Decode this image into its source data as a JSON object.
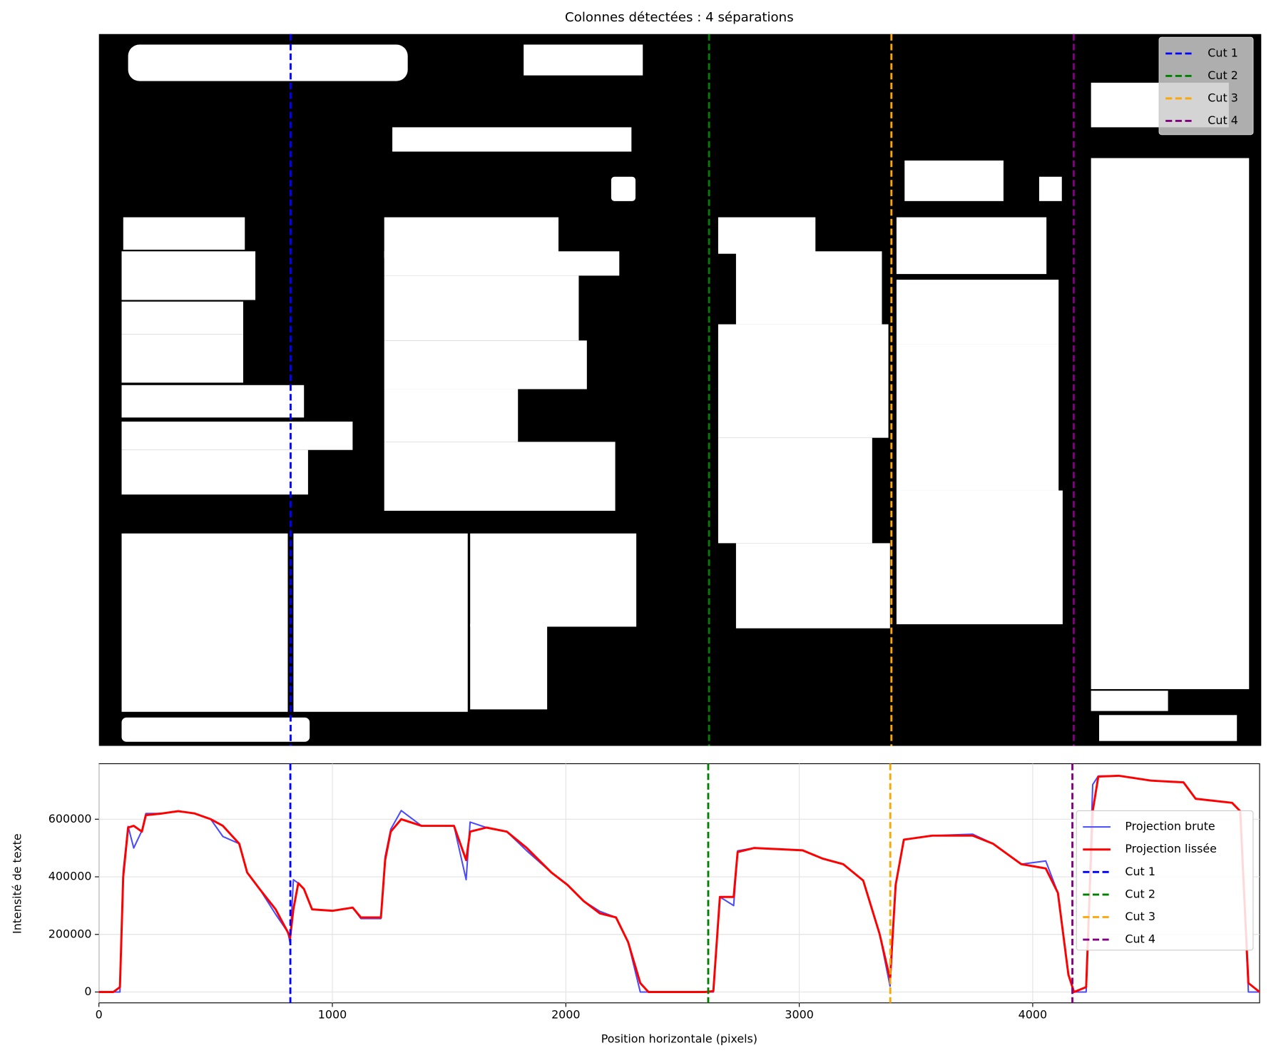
{
  "chart_data": [
    {
      "type": "image",
      "title": "Colonnes détectées : 4 séparations",
      "xlim": [
        0,
        4972
      ],
      "legend": "upper right",
      "series": [
        {
          "name": "Cut 1",
          "color": "#0000ff",
          "value": 820
        },
        {
          "name": "Cut 2",
          "color": "#008000",
          "value": 2610
        },
        {
          "name": "Cut 3",
          "color": "#ffa500",
          "value": 3390
        },
        {
          "name": "Cut 4",
          "color": "#800080",
          "value": 4170
        }
      ]
    },
    {
      "type": "line",
      "xlabel": "Position horizontale (pixels)",
      "ylabel": "Intensité de texte",
      "xlim": [
        0,
        4972
      ],
      "ylim": [
        -37750,
        792750
      ],
      "xticks": [
        0,
        1000,
        2000,
        3000,
        4000
      ],
      "yticks": [
        0,
        200000,
        400000,
        600000
      ],
      "grid": true,
      "legend": "center right",
      "x": [
        0,
        62,
        90,
        104,
        125,
        149,
        184,
        201,
        271,
        340,
        410,
        479,
        531,
        601,
        635,
        688,
        757,
        809,
        819,
        833,
        854,
        878,
        913,
        1000,
        1087,
        1122,
        1208,
        1226,
        1250,
        1295,
        1382,
        1521,
        1573,
        1590,
        1660,
        1747,
        1833,
        1938,
        2007,
        2076,
        2146,
        2215,
        2267,
        2319,
        2354,
        2597,
        2632,
        2660,
        2719,
        2736,
        2806,
        3014,
        3101,
        3188,
        3274,
        3344,
        3389,
        3413,
        3448,
        3569,
        3743,
        3830,
        3951,
        4056,
        4108,
        4153,
        4177,
        4229,
        4257,
        4281,
        4368,
        4507,
        4646,
        4698,
        4854,
        4889,
        4924,
        4972
      ],
      "series": [
        {
          "name": "Projection brute",
          "color": "#4a4aff",
          "values": [
            0,
            0,
            0,
            420000,
            575000,
            500000,
            560000,
            620000,
            620000,
            628000,
            620000,
            600000,
            540000,
            515000,
            415000,
            358000,
            270000,
            208000,
            170000,
            390000,
            378000,
            358000,
            287000,
            282000,
            293000,
            255000,
            255000,
            470000,
            565000,
            630000,
            577000,
            577000,
            390000,
            590000,
            571000,
            557000,
            490000,
            415000,
            372000,
            316000,
            280000,
            259000,
            173000,
            0,
            0,
            0,
            0,
            330000,
            300000,
            490000,
            500000,
            492000,
            463000,
            444000,
            387000,
            202000,
            20000,
            372000,
            529000,
            543000,
            548000,
            515000,
            444000,
            455000,
            344000,
            60000,
            0,
            0,
            720000,
            750000,
            751000,
            734000,
            728000,
            671000,
            657000,
            628000,
            0,
            0
          ]
        },
        {
          "name": "Projection lissée",
          "color": "#ff0000",
          "values": [
            0,
            0,
            17000,
            400000,
            571000,
            577000,
            557000,
            614000,
            620000,
            628000,
            620000,
            600000,
            577000,
            515000,
            415000,
            358000,
            287000,
            208000,
            188000,
            287000,
            378000,
            358000,
            287000,
            282000,
            293000,
            259000,
            259000,
            458000,
            557000,
            600000,
            577000,
            577000,
            458000,
            557000,
            571000,
            557000,
            500000,
            415000,
            372000,
            316000,
            273000,
            259000,
            173000,
            31000,
            0,
            0,
            3000,
            330000,
            330000,
            486000,
            500000,
            492000,
            463000,
            444000,
            387000,
            202000,
            45000,
            372000,
            529000,
            543000,
            543000,
            515000,
            444000,
            429000,
            344000,
            60000,
            0,
            17000,
            628000,
            748000,
            751000,
            734000,
            728000,
            671000,
            657000,
            628000,
            31000,
            0
          ]
        },
        {
          "name": "Cut 1",
          "color": "#0000ff",
          "value": 820
        },
        {
          "name": "Cut 2",
          "color": "#008000",
          "value": 2610
        },
        {
          "name": "Cut 3",
          "color": "#ffa500",
          "value": 3390
        },
        {
          "name": "Cut 4",
          "color": "#800080",
          "value": 4170
        }
      ]
    }
  ]
}
